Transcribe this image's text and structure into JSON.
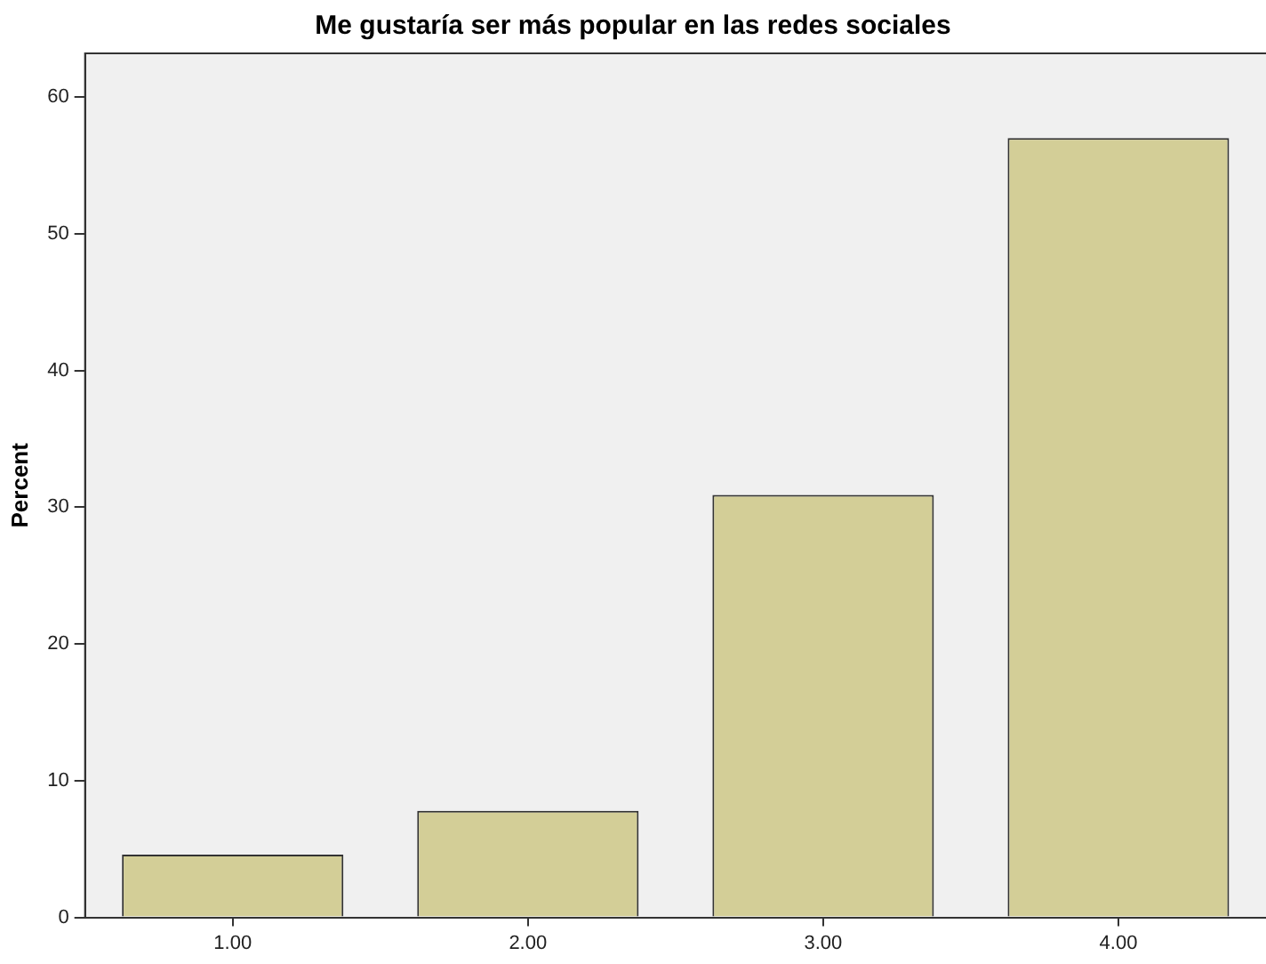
{
  "chart_data": {
    "type": "bar",
    "title": "Me gustaría ser más popular en las redes sociales",
    "ylabel": "Percent",
    "categories": [
      "1.00",
      "2.00",
      "3.00",
      "4.00"
    ],
    "values": [
      4.6,
      7.8,
      30.9,
      57.0
    ],
    "color": "#d3ce97",
    "ylim": [
      0,
      63.2
    ],
    "yticks": [
      0,
      10,
      20,
      30,
      40,
      50,
      60
    ],
    "grid": false,
    "legend": false
  }
}
